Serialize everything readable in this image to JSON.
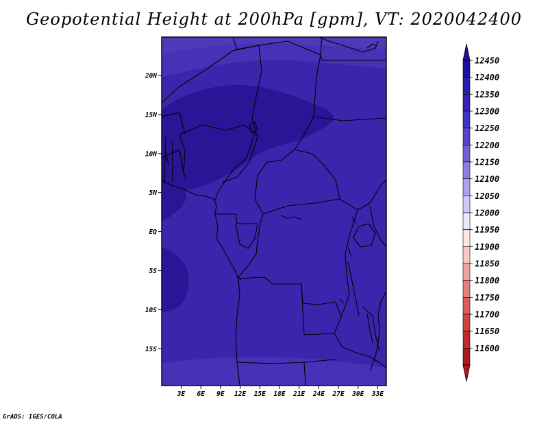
{
  "title": "Geopotential Height at 200hPa [gpm], VT: 2020042400",
  "credit": "GrADS: IGES/COLA",
  "map": {
    "lat_labels": [
      "20N",
      "15N",
      "10N",
      "5N",
      "EQ",
      "5S",
      "10S",
      "15S"
    ],
    "lon_labels": [
      "3E",
      "6E",
      "9E",
      "12E",
      "15E",
      "18E",
      "21E",
      "24E",
      "27E",
      "30E",
      "33E"
    ]
  },
  "colorbar": {
    "labels": [
      "12450",
      "12400",
      "12350",
      "12300",
      "12250",
      "12200",
      "12150",
      "12100",
      "12050",
      "12000",
      "11950",
      "11900",
      "11850",
      "11800",
      "11750",
      "11700",
      "11650",
      "11600"
    ],
    "colors": [
      "#1e0fa0",
      "#2a1fab",
      "#3524b4",
      "#4232c0",
      "#5544cc",
      "#7060da",
      "#8a80e6",
      "#aaa4ef",
      "#cdcaf6",
      "#ebe9fb",
      "#fde6e6",
      "#f9c8c8",
      "#f1a2a2",
      "#e87e7e",
      "#de5c5c",
      "#d24040",
      "#c02a2a",
      "#aa1a1a"
    ],
    "top_triangle_color": "#1e0fa0",
    "bottom_triangle_color": "#aa1a1a"
  },
  "field_colors": {
    "deep": "#2b1596",
    "mid": "#3620a6",
    "base": "#3a26ad",
    "light": "#4532b6",
    "lighter": "#4c3ab9"
  }
}
